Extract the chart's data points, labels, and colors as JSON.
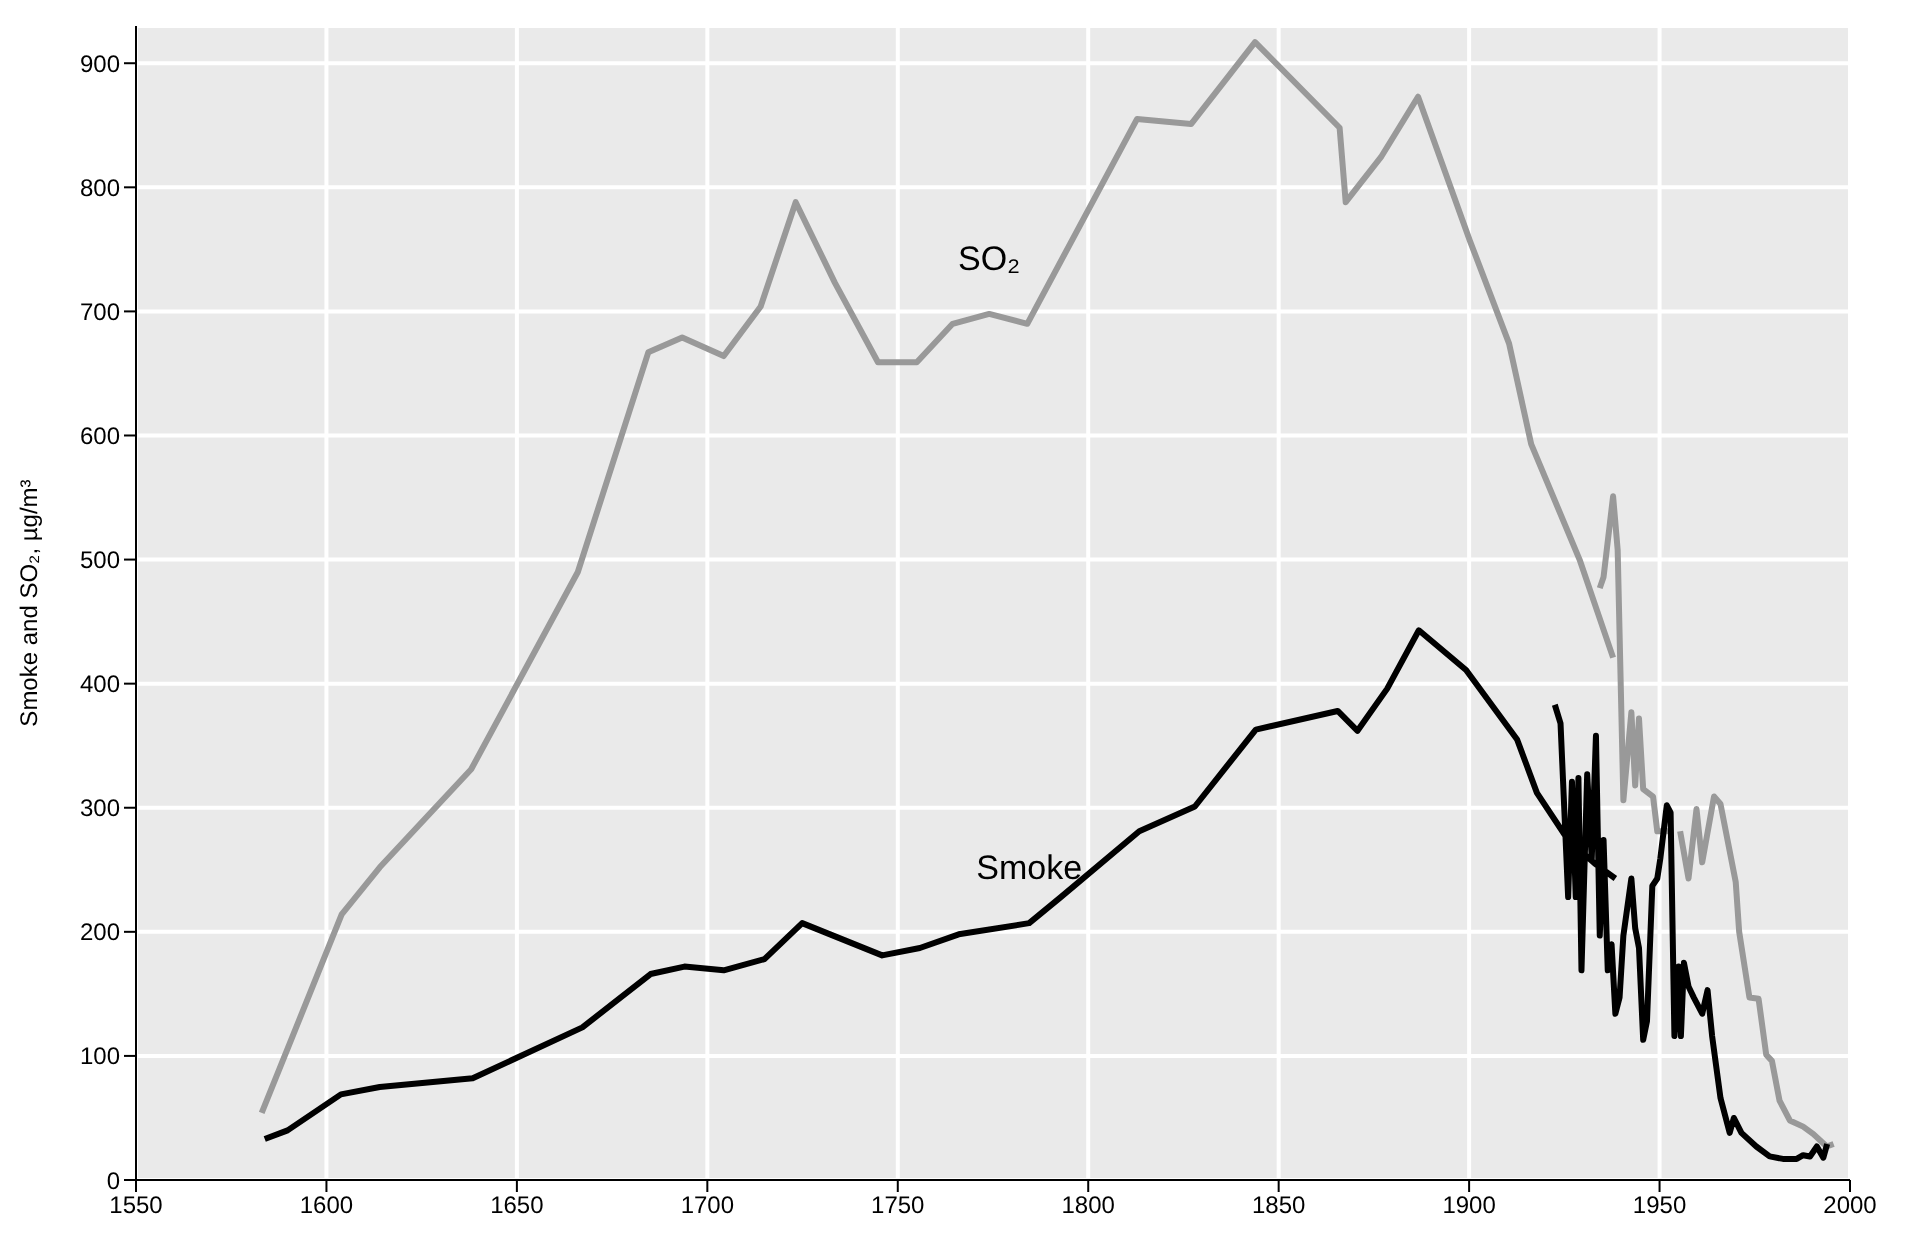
{
  "chart_data": {
    "type": "line",
    "ylabel": "Smoke and SO₂, µg/m³",
    "xlim": [
      1550,
      2000
    ],
    "xticks": [
      1550,
      1600,
      1650,
      1700,
      1750,
      1800,
      1850,
      1900,
      1950,
      2000
    ],
    "ylim": [
      0,
      930
    ],
    "yticks": [
      0,
      100,
      200,
      300,
      400,
      500,
      600,
      700,
      800,
      900
    ],
    "grid": true,
    "legend": false,
    "line_style": "solid",
    "marker": "none",
    "series": [
      {
        "name": "SO₂",
        "color": "#999999",
        "x": [
          1583,
          1604,
          1614,
          1638,
          1666,
          1684.5,
          1693.4,
          1704.3,
          1714,
          1723.2,
          1733.5,
          1744.8,
          1755,
          1764.4,
          1774,
          1784,
          1812.8,
          1827,
          1843.8,
          1866,
          1867.6,
          1877,
          1886.6,
          1900.2,
          1910.5,
          1916.3,
          1929,
          1937.8,
          null,
          1934.3,
          1935.3,
          1937.8,
          1939,
          1940.5,
          1942.6,
          1943.6,
          1944.6,
          1945.7,
          1948.3,
          1949.4,
          1952.9,
          null,
          1955.4,
          1957.6,
          1959.7,
          1961.2,
          1964.3,
          1966,
          1970,
          1970.9,
          1973.6,
          1976,
          1978,
          1979.5,
          1981.5,
          1984.2,
          1987.7,
          1990.4,
          1993.9,
          1995.7
        ],
        "values": [
          54,
          214,
          252,
          331,
          490,
          667,
          679,
          664,
          704,
          788,
          723,
          659,
          659,
          690,
          698,
          690,
          855,
          851,
          917,
          848,
          788,
          825,
          873,
          757,
          674,
          593,
          500,
          421,
          null,
          477,
          486,
          551,
          508,
          306,
          377,
          318,
          372,
          315,
          309,
          281,
          281,
          null,
          281,
          243,
          299,
          256,
          309,
          303,
          240,
          200,
          147,
          146,
          101,
          96,
          64,
          48,
          43,
          37,
          27,
          29
        ]
      },
      {
        "name": "Smoke",
        "color": "#000000",
        "x": [
          1583.8,
          1589.8,
          1603.8,
          1614,
          1638.4,
          1667.2,
          1685.1,
          1694,
          1704.3,
          1715,
          1724.9,
          1745.9,
          1755.8,
          1766,
          1784.5,
          1792.8,
          1813.4,
          1828,
          1844,
          1865.5,
          1870.7,
          1878.5,
          1886.8,
          1899.2,
          1912.6,
          1917.8,
          1926,
          1933,
          1938.4,
          null,
          1922.5,
          1924,
          1926,
          1927,
          1928,
          1928.7,
          1929.5,
          1931,
          1932.2,
          1933.3,
          1934.3,
          1935.3,
          1936.4,
          1937.4,
          1938.4,
          1939.5,
          1940.5,
          1942.6,
          1943.6,
          1944.6,
          1945.7,
          1946.7,
          1948.1,
          1949.4,
          1950.2,
          1951.9,
          1952.9,
          1953.9,
          1955,
          1955.6,
          1956.4,
          1957.6,
          1959,
          1961.2,
          1962.6,
          1963.8,
          1966,
          1968.4,
          1969.5,
          1971.5,
          1975.4,
          1978.9,
          1982.4,
          1986,
          1987.7,
          1989.5,
          1991.3,
          1993,
          1994
        ],
        "values": [
          33,
          40,
          69,
          75,
          82,
          123,
          166,
          172,
          169,
          178,
          207,
          181,
          187,
          198,
          207,
          228,
          281,
          301,
          363,
          378,
          362,
          396,
          443,
          411,
          355,
          312,
          274,
          255,
          243,
          null,
          383,
          368,
          228,
          321,
          228,
          324,
          169,
          327,
          259,
          358,
          197,
          274,
          169,
          190,
          134,
          147,
          197,
          243,
          203,
          187,
          113,
          128,
          237,
          243,
          259,
          302,
          296,
          116,
          172,
          116,
          175,
          156,
          147,
          134,
          153,
          116,
          66,
          38,
          50,
          38,
          27,
          19,
          17,
          17,
          20,
          19,
          27,
          18,
          29
        ]
      }
    ]
  }
}
